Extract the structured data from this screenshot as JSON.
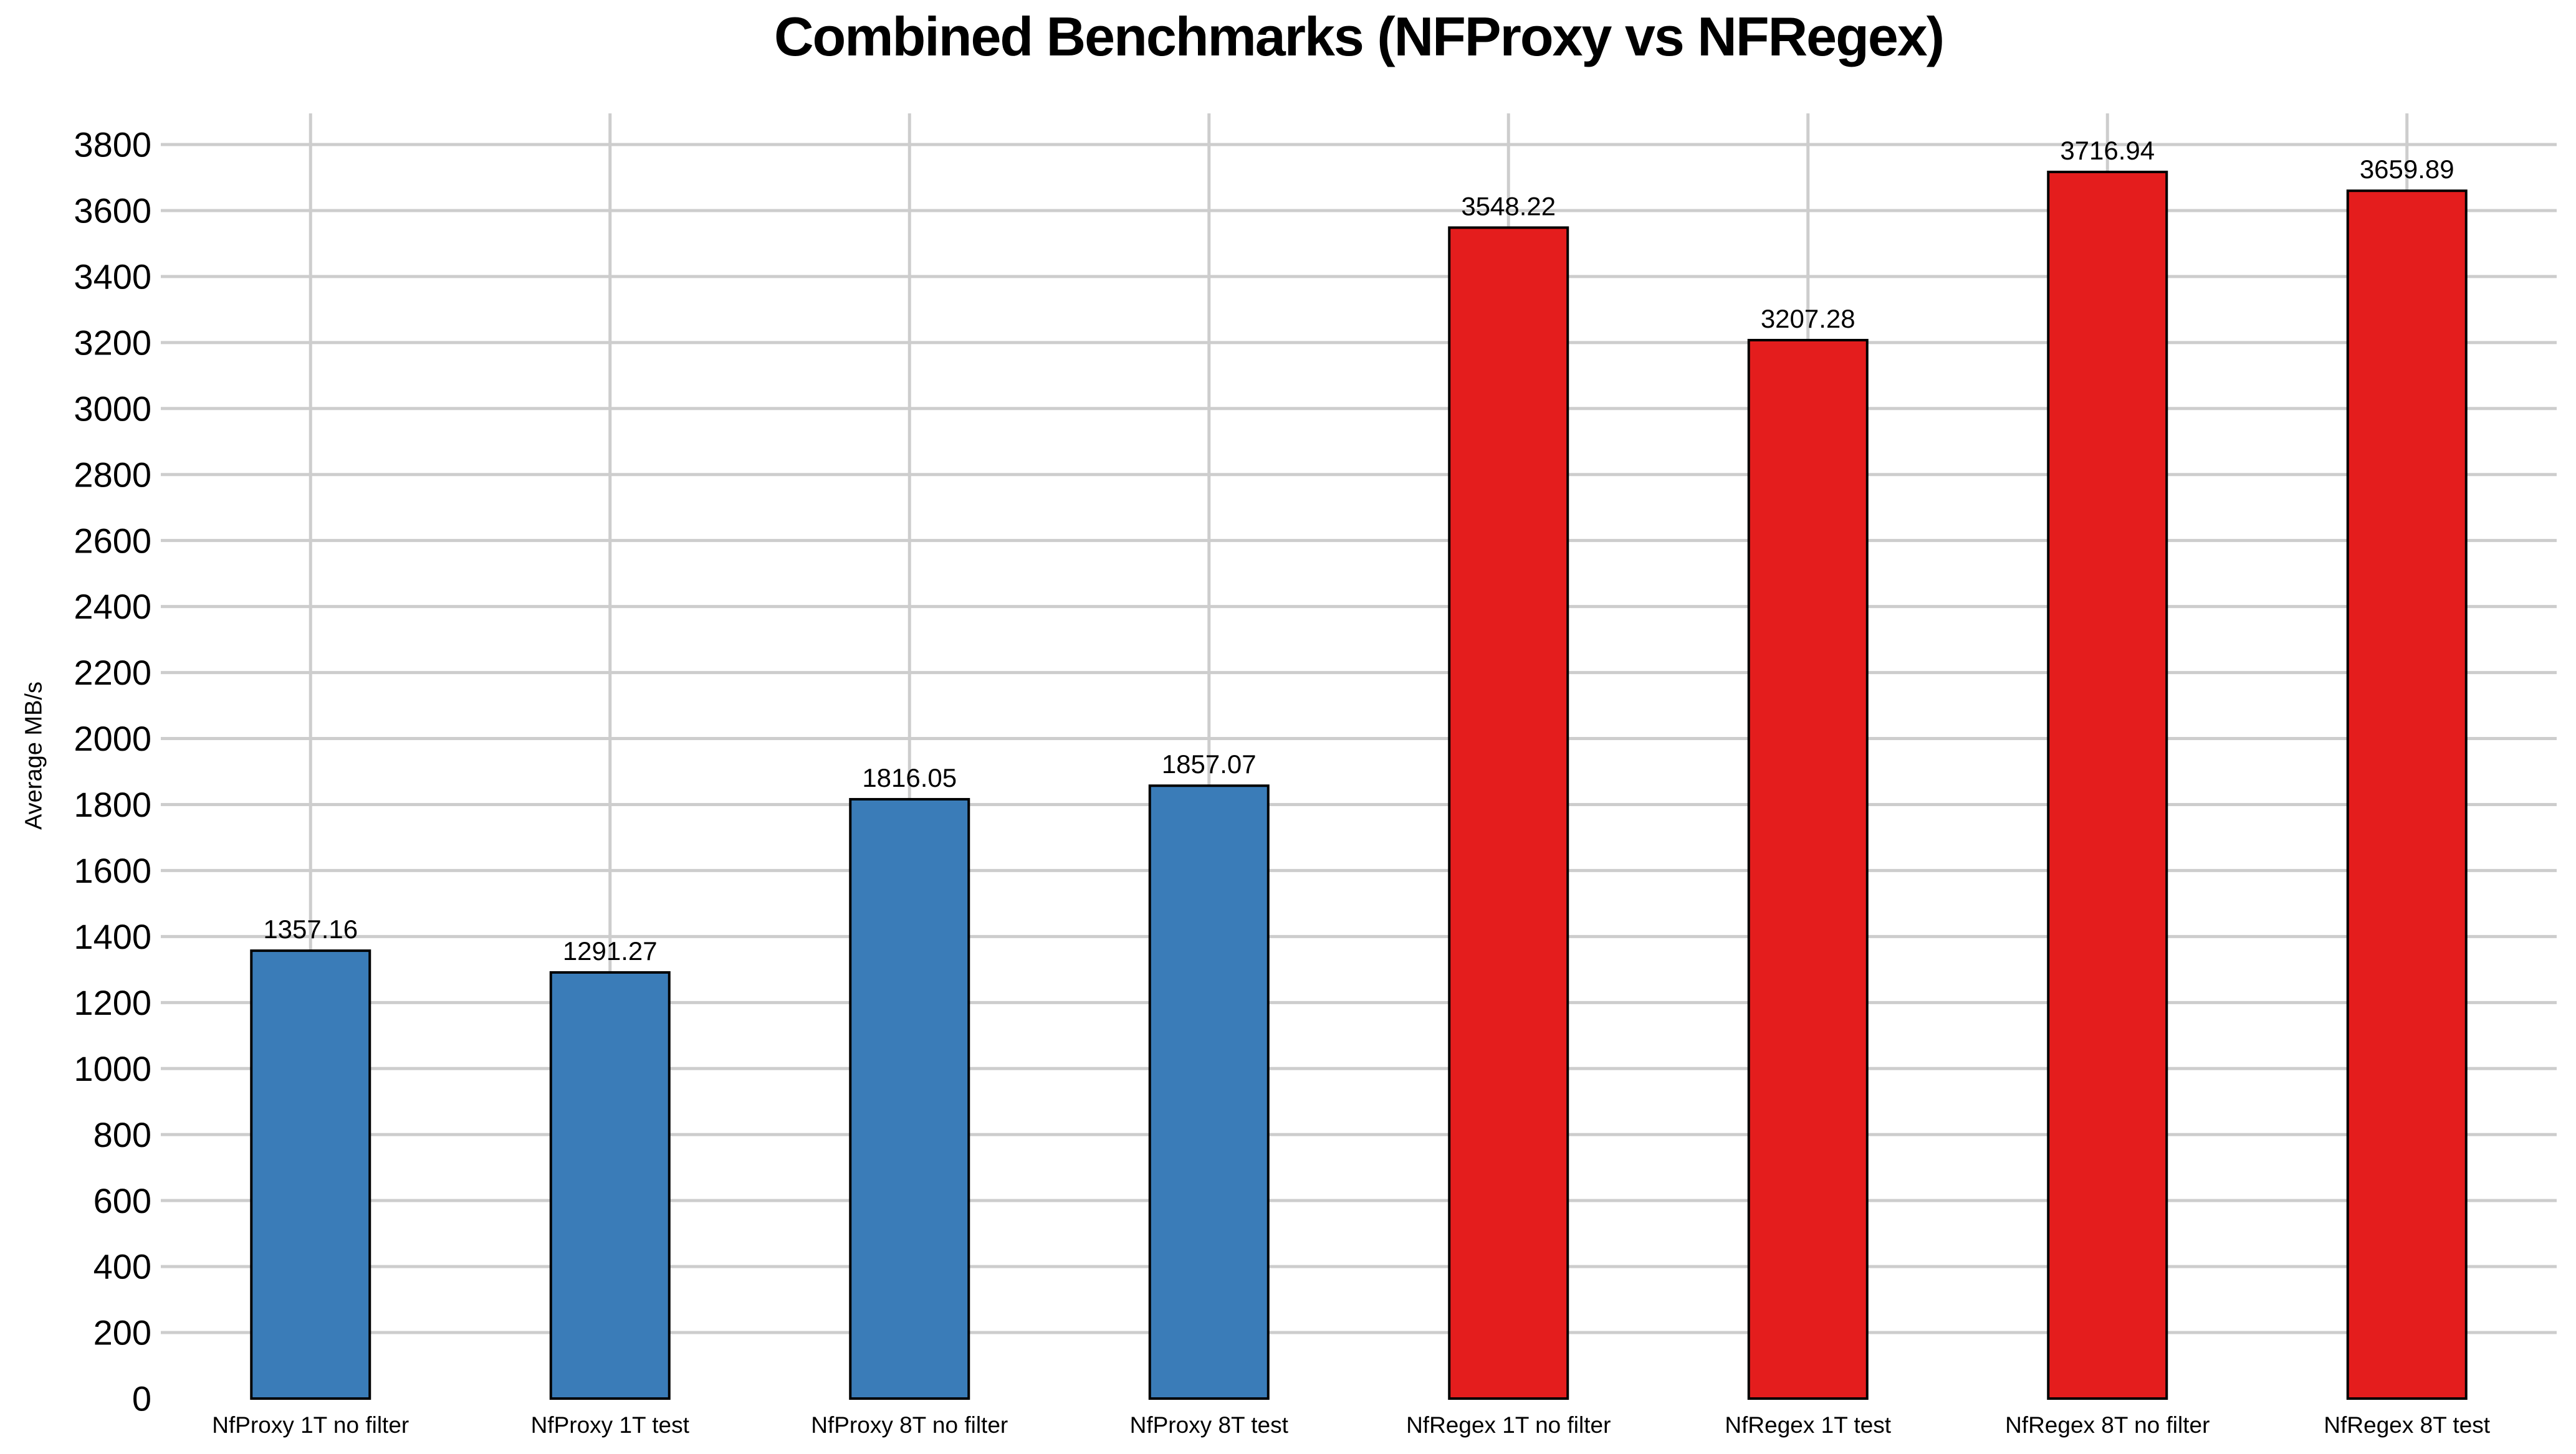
{
  "chart_data": {
    "type": "bar",
    "title": "Combined Benchmarks (NFProxy vs NFRegex)",
    "ylabel": "Average MB/s",
    "xlabel": "",
    "categories": [
      "NfProxy 1T no filter",
      "NfProxy 1T test",
      "NfProxy 8T no filter",
      "NfProxy 8T test",
      "NfRegex 1T no filter",
      "NfRegex 1T test",
      "NfRegex 8T no filter",
      "NfRegex 8T test"
    ],
    "values": [
      1357.16,
      1291.27,
      1816.05,
      1857.07,
      3548.22,
      3207.28,
      3716.94,
      3659.89
    ],
    "value_labels": [
      "1357.16",
      "1291.27",
      "1816.05",
      "1857.07",
      "3548.22",
      "3207.28",
      "3716.94",
      "3659.89"
    ],
    "series": [
      {
        "name": "NfProxy",
        "color": "#3a7cb8",
        "bar_indices": [
          0,
          1,
          2,
          3
        ]
      },
      {
        "name": "NfRegex",
        "color": "#e41d1d",
        "bar_indices": [
          4,
          5,
          6,
          7
        ]
      }
    ],
    "bar_colors": [
      "#3a7cb8",
      "#3a7cb8",
      "#3a7cb8",
      "#3a7cb8",
      "#e41d1d",
      "#e41d1d",
      "#e41d1d",
      "#e41d1d"
    ],
    "bar_edge_color": "#000000",
    "yticks": [
      0,
      200,
      400,
      600,
      800,
      1000,
      1200,
      1400,
      1600,
      1800,
      2000,
      2200,
      2400,
      2600,
      2800,
      3000,
      3200,
      3400,
      3600,
      3800
    ],
    "ylim": [
      0,
      3895
    ],
    "grid": true,
    "grid_color": "#cdcdcd",
    "background_color": "#ffffff",
    "legend": "none"
  }
}
